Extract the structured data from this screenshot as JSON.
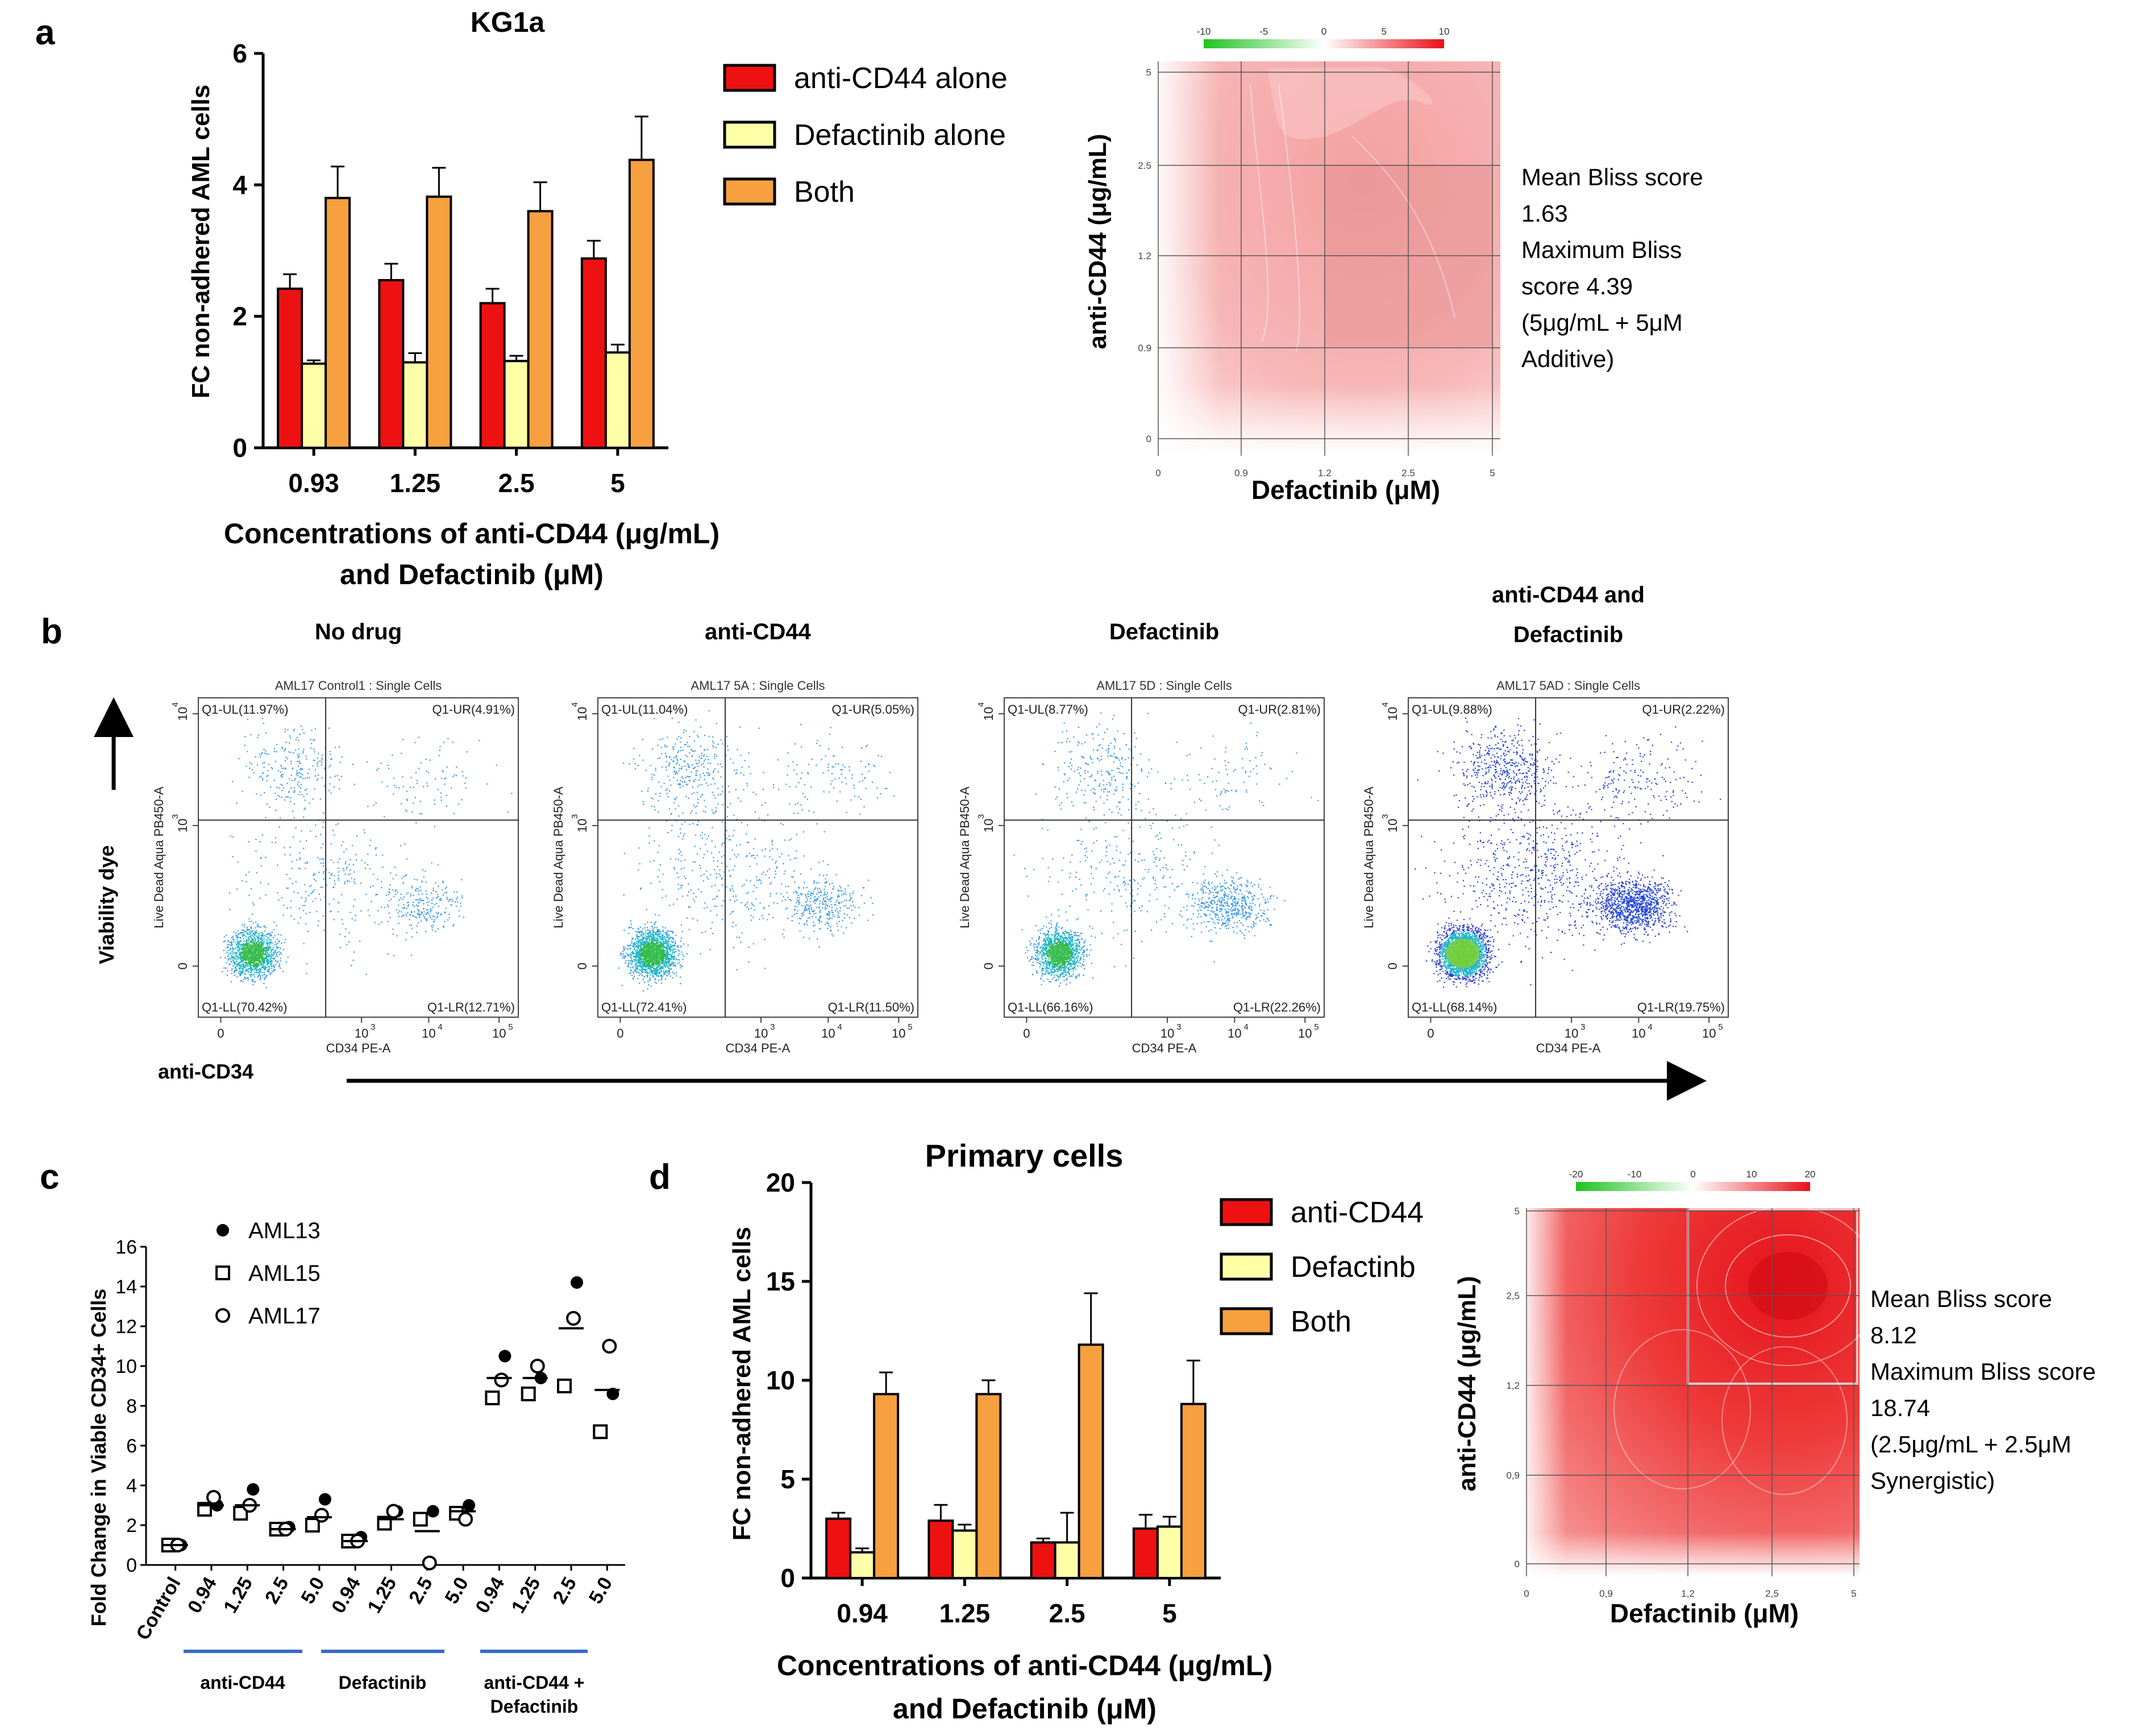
{
  "panels": {
    "a": "a",
    "b": "b",
    "c": "c",
    "d": "d"
  },
  "colors": {
    "anti_cd44": "#ee1111",
    "defactinib": "#ffffa8",
    "both": "#f7a040",
    "arrow": "#000000",
    "bar_line": "#3a6bc8"
  },
  "chart_data": [
    {
      "id": "a-bar",
      "type": "bar",
      "title": "KG1a",
      "xlabel": "Concentrations of anti-CD44 (μg/mL)",
      "xlabel2": "and Defactinib (μM)",
      "ylabel": "FC non-adhered AML cells",
      "ylim": [
        0,
        6
      ],
      "yticks": [
        "0",
        "2",
        "4",
        "6"
      ],
      "categories": [
        "0.93",
        "1.25",
        "2.5",
        "5"
      ],
      "series": [
        {
          "name": "anti-CD44 alone",
          "color": "#ee1111",
          "values": [
            2.42,
            2.55,
            2.2,
            2.88
          ],
          "errors": [
            0.22,
            0.25,
            0.22,
            0.27
          ]
        },
        {
          "name": "Defactinib alone",
          "color": "#ffffa8",
          "values": [
            1.28,
            1.3,
            1.32,
            1.45
          ],
          "errors": [
            0.05,
            0.14,
            0.08,
            0.12
          ]
        },
        {
          "name": "Both",
          "color": "#f7a040",
          "values": [
            3.8,
            3.82,
            3.6,
            4.38
          ],
          "errors": [
            0.48,
            0.44,
            0.44,
            0.66
          ]
        }
      ]
    },
    {
      "id": "a-heat",
      "type": "heatmap",
      "xlabel": "Defactinib (μM)",
      "ylabel": "anti-CD44 (μg/mL)",
      "xticks": [
        "0",
        "0.9",
        "1.2",
        "2.5",
        "5"
      ],
      "yticks": [
        "0",
        "0.9",
        "1.2",
        "2.5",
        "5"
      ],
      "scale_ticks": [
        "-10",
        "-5",
        "0",
        "5",
        "10"
      ],
      "annotation": [
        "Mean Bliss score",
        "1.63",
        "Maximum Bliss",
        "score 4.39",
        "(5μg/mL + 5μM",
        "Additive)"
      ]
    },
    {
      "id": "b-flow",
      "type": "scatter",
      "ylabel": "Viability dye",
      "xlabel": "anti-CD34",
      "axis_x_label": "CD34 PE-A",
      "axis_y_label": "Live Dead Aqua PB450-A",
      "x_ticks": [
        "0",
        "10",
        "10",
        "10"
      ],
      "x_exps": [
        "",
        "3",
        "4",
        "5"
      ],
      "y_ticks": [
        "0",
        "10",
        "10"
      ],
      "y_exps": [
        "",
        "3",
        "4"
      ],
      "plots": [
        {
          "label": "No drug",
          "title": "AML17 Control1 : Single Cells",
          "UL": "Q1-UL(11.97%)",
          "UR": "Q1-UR(4.91%)",
          "LL": "Q1-LL(70.42%)",
          "LR": "Q1-LR(12.71%)"
        },
        {
          "label": "anti-CD44",
          "title": "AML17 5A : Single Cells",
          "UL": "Q1-UL(11.04%)",
          "UR": "Q1-UR(5.05%)",
          "LL": "Q1-LL(72.41%)",
          "LR": "Q1-LR(11.50%)"
        },
        {
          "label": "Defactinib",
          "title": "AML17 5D : Single Cells",
          "UL": "Q1-UL(8.77%)",
          "UR": "Q1-UR(2.81%)",
          "LL": "Q1-LL(66.16%)",
          "LR": "Q1-LR(22.26%)"
        },
        {
          "label": "anti-CD44 and",
          "label2": "Defactinib",
          "title": "AML17 5AD : Single Cells",
          "UL": "Q1-UL(9.88%)",
          "UR": "Q1-UR(2.22%)",
          "LL": "Q1-LL(68.14%)",
          "LR": "Q1-LR(19.75%)"
        }
      ]
    },
    {
      "id": "c-dot",
      "type": "scatter",
      "ylabel": "Fold  Change in Viable CD34+ Cells",
      "ylim": [
        0,
        16
      ],
      "yticks": [
        "0",
        "2",
        "4",
        "6",
        "8",
        "10",
        "12",
        "14",
        "16"
      ],
      "categories": [
        "Control",
        "0.94",
        "1.25",
        "2.5",
        "5.0",
        "0.94",
        "1.25",
        "2.5",
        "5.0",
        "0.94",
        "1.25",
        "2.5",
        "5.0"
      ],
      "groups": [
        "anti-CD44",
        "Defactinib",
        "anti-CD44 +",
        "Defactinib"
      ],
      "series": [
        {
          "name": "AML13",
          "marker": "filled-circle",
          "values": [
            1.0,
            3.0,
            3.8,
            1.9,
            3.3,
            1.4,
            2.7,
            2.7,
            3.0,
            10.5,
            9.4,
            14.2,
            8.6
          ]
        },
        {
          "name": "AML15",
          "marker": "open-square",
          "values": [
            1.0,
            2.8,
            2.6,
            1.8,
            2.0,
            1.2,
            2.1,
            2.3,
            2.6,
            8.4,
            8.6,
            9.0,
            6.7
          ]
        },
        {
          "name": "AML17",
          "marker": "open-circle",
          "values": [
            1.0,
            3.4,
            3.0,
            1.8,
            2.5,
            1.2,
            2.7,
            0.1,
            2.3,
            9.3,
            10.0,
            12.4,
            11.0
          ]
        },
        {
          "name": "Mean",
          "marker": "dash",
          "values": [
            1.0,
            3.0,
            3.0,
            1.8,
            2.4,
            1.2,
            2.3,
            1.7,
            2.7,
            9.4,
            9.4,
            11.9,
            8.8
          ]
        }
      ]
    },
    {
      "id": "d-bar",
      "type": "bar",
      "title": "Primary cells",
      "xlabel": "Concentrations of anti-CD44 (μg/mL)",
      "xlabel2": "and Defactinib (μM)",
      "ylabel": "FC non-adhered AML cells",
      "ylim": [
        0,
        20
      ],
      "yticks": [
        "0",
        "5",
        "10",
        "15",
        "20"
      ],
      "categories": [
        "0.94",
        "1.25",
        "2.5",
        "5"
      ],
      "series": [
        {
          "name": "anti-CD44",
          "color": "#ee1111",
          "values": [
            3.0,
            2.9,
            1.8,
            2.5
          ],
          "errors": [
            0.3,
            0.8,
            0.2,
            0.7
          ]
        },
        {
          "name": "Defactinb",
          "color": "#ffffa8",
          "values": [
            1.3,
            2.4,
            1.8,
            2.6
          ],
          "errors": [
            0.2,
            0.3,
            1.5,
            0.5
          ]
        },
        {
          "name": "Both",
          "color": "#f7a040",
          "values": [
            9.3,
            9.3,
            11.8,
            8.8
          ],
          "errors": [
            1.1,
            0.7,
            2.6,
            2.2
          ]
        }
      ]
    },
    {
      "id": "d-heat",
      "type": "heatmap",
      "xlabel": "Defactinib (μM)",
      "ylabel": "anti-CD44 (μg/mL)",
      "xticks": [
        "0",
        "0,9",
        "1,2",
        "2,5",
        "5"
      ],
      "yticks": [
        "0",
        "0,9",
        "1,2",
        "2,5",
        "5"
      ],
      "scale_ticks": [
        "-20",
        "-10",
        "0",
        "10",
        "20"
      ],
      "annotation": [
        "Mean Bliss score",
        "8.12",
        "Maximum Bliss score",
        "18.74",
        "(2.5μg/mL + 2.5μM",
        "Synergistic)"
      ]
    }
  ]
}
